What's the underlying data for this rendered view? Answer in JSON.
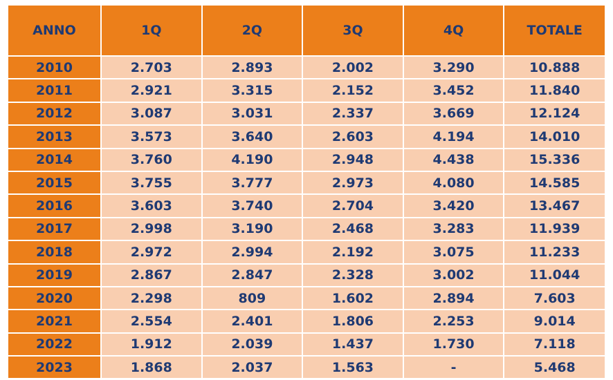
{
  "table": {
    "headers": [
      "ANNO",
      "1Q",
      "2Q",
      "3Q",
      "4Q",
      "TOTALE"
    ],
    "rows": [
      [
        "2010",
        "2.703",
        "2.893",
        "2.002",
        "3.290",
        "10.888"
      ],
      [
        "2011",
        "2.921",
        "3.315",
        "2.152",
        "3.452",
        "11.840"
      ],
      [
        "2012",
        "3.087",
        "3.031",
        "2.337",
        "3.669",
        "12.124"
      ],
      [
        "2013",
        "3.573",
        "3.640",
        "2.603",
        "4.194",
        "14.010"
      ],
      [
        "2014",
        "3.760",
        "4.190",
        "2.948",
        "4.438",
        "15.336"
      ],
      [
        "2015",
        "3.755",
        "3.777",
        "2.973",
        "4.080",
        "14.585"
      ],
      [
        "2016",
        "3.603",
        "3.740",
        "2.704",
        "3.420",
        "13.467"
      ],
      [
        "2017",
        "2.998",
        "3.190",
        "2.468",
        "3.283",
        "11.939"
      ],
      [
        "2018",
        "2.972",
        "2.994",
        "2.192",
        "3.075",
        "11.233"
      ],
      [
        "2019",
        "2.867",
        "2.847",
        "2.328",
        "3.002",
        "11.044"
      ],
      [
        "2020",
        "2.298",
        "809",
        "1.602",
        "2.894",
        "7.603"
      ],
      [
        "2021",
        "2.554",
        "2.401",
        "1.806",
        "2.253",
        "9.014"
      ],
      [
        "2022",
        "1.912",
        "2.039",
        "1.437",
        "1.730",
        "7.118"
      ],
      [
        "2023",
        "1.868",
        "2.037",
        "1.563",
        "-",
        "5.468"
      ]
    ]
  },
  "colors": {
    "header_bg": "#ec7f1a",
    "cell_bg": "#f9ceb0",
    "text": "#1f3a73"
  }
}
